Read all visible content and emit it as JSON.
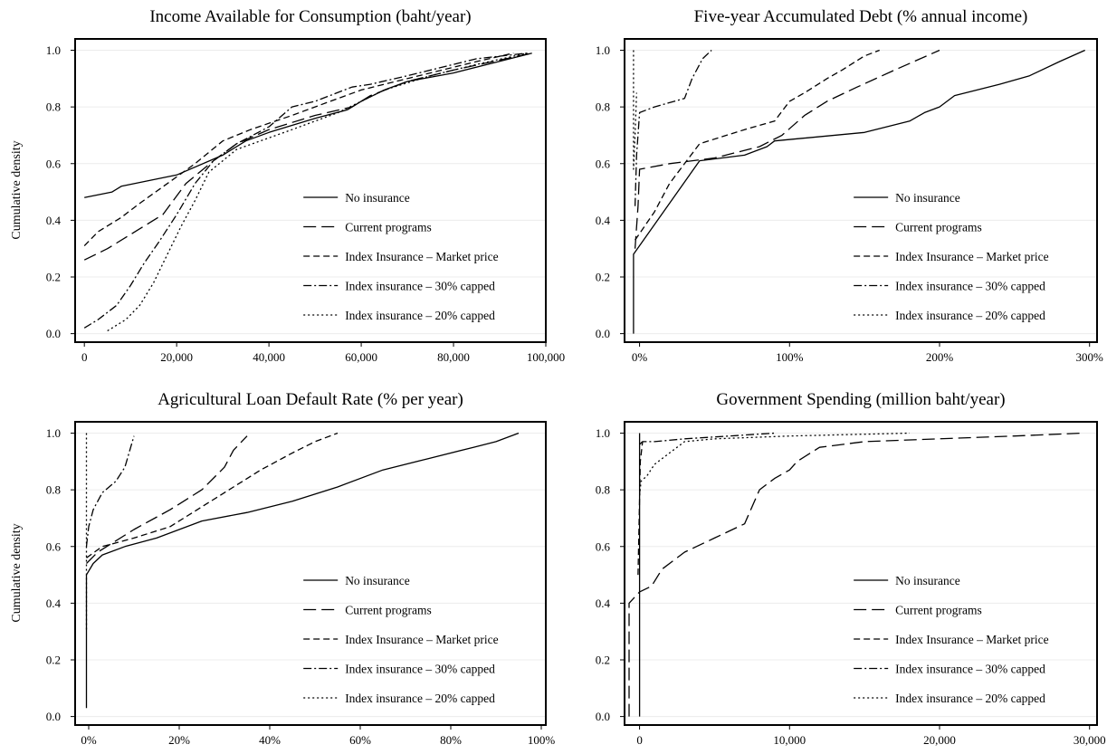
{
  "series_styles": {
    "No insurance": "",
    "Current programs": "14,6",
    "Index Insurance – Market price": "7,4",
    "Index insurance – 30% capped": "9,3,2,3",
    "Index insurance – 20% capped": "2,3"
  },
  "chart_data": [
    {
      "type": "line",
      "title": "Income Available for Consumption (baht/year)",
      "ylabel": "Cumulative density",
      "xlabel": "",
      "xlim": [
        -2000,
        100000
      ],
      "ylim": [
        -0.03,
        1.04
      ],
      "xticks": [
        0,
        20000,
        40000,
        60000,
        80000,
        100000
      ],
      "xtick_labels": [
        "0",
        "20,000",
        "40,000",
        "60,000",
        "80,000",
        "100,000"
      ],
      "yticks": [
        0.0,
        0.2,
        0.4,
        0.6,
        0.8,
        1.0
      ],
      "ytick_labels": [
        "0.0",
        "0.2",
        "0.4",
        "0.6",
        "0.8",
        "1.0"
      ],
      "grid": true,
      "legend": "lower-right",
      "series": [
        {
          "name": "No insurance",
          "x": [
            0,
            6000,
            8000,
            20000,
            30000,
            35000,
            40000,
            50000,
            57000,
            60000,
            65000,
            70000,
            80000,
            97000
          ],
          "y": [
            0.48,
            0.5,
            0.52,
            0.56,
            0.63,
            0.68,
            0.71,
            0.76,
            0.79,
            0.82,
            0.86,
            0.89,
            0.92,
            0.99
          ]
        },
        {
          "name": "Current programs",
          "x": [
            0,
            5000,
            10000,
            17000,
            22000,
            28000,
            33000,
            40000,
            50000,
            58000,
            62000,
            70000,
            80000,
            97000
          ],
          "y": [
            0.26,
            0.3,
            0.35,
            0.42,
            0.53,
            0.61,
            0.67,
            0.72,
            0.77,
            0.8,
            0.84,
            0.89,
            0.93,
            0.99
          ]
        },
        {
          "name": "Index Insurance – Market price",
          "x": [
            0,
            3000,
            8000,
            12000,
            18000,
            24000,
            30000,
            36000,
            45000,
            55000,
            60000,
            65000,
            75000,
            85000,
            93000
          ],
          "y": [
            0.31,
            0.36,
            0.41,
            0.46,
            0.53,
            0.6,
            0.68,
            0.72,
            0.77,
            0.83,
            0.86,
            0.88,
            0.92,
            0.96,
            0.99
          ]
        },
        {
          "name": "Index insurance – 30% capped",
          "x": [
            0,
            3000,
            7000,
            10000,
            13000,
            16000,
            20000,
            24000,
            28000,
            33000,
            40000,
            45000,
            50000,
            58000,
            62000,
            70000,
            85000,
            96000
          ],
          "y": [
            0.02,
            0.05,
            0.1,
            0.17,
            0.25,
            0.32,
            0.42,
            0.53,
            0.61,
            0.67,
            0.73,
            0.8,
            0.82,
            0.87,
            0.88,
            0.91,
            0.97,
            0.99
          ]
        },
        {
          "name": "Index insurance – 20% capped",
          "x": [
            5000,
            9000,
            12000,
            15000,
            18000,
            21000,
            24000,
            27000,
            33000,
            45000,
            55000,
            65000,
            75000,
            85000,
            96000
          ],
          "y": [
            0.01,
            0.05,
            0.1,
            0.18,
            0.28,
            0.38,
            0.47,
            0.57,
            0.65,
            0.72,
            0.78,
            0.86,
            0.91,
            0.95,
            0.99
          ]
        }
      ]
    },
    {
      "type": "line",
      "title": "Five-year Accumulated Debt (% annual income)",
      "ylabel": "",
      "xlabel": "",
      "xlim": [
        -10,
        305
      ],
      "ylim": [
        -0.03,
        1.04
      ],
      "xticks": [
        0,
        100,
        200,
        300
      ],
      "xtick_labels": [
        "0%",
        "100%",
        "200%",
        "300%"
      ],
      "yticks": [
        0.0,
        0.2,
        0.4,
        0.6,
        0.8,
        1.0
      ],
      "ytick_labels": [
        "0.0",
        "0.2",
        "0.4",
        "0.6",
        "0.8",
        "1.0"
      ],
      "grid": true,
      "legend": "lower-right",
      "series": [
        {
          "name": "No insurance",
          "x": [
            -4,
            -4,
            -4,
            40,
            70,
            85,
            90,
            150,
            180,
            190,
            200,
            210,
            240,
            260,
            280,
            297
          ],
          "y": [
            0.0,
            0.24,
            0.28,
            0.61,
            0.63,
            0.66,
            0.68,
            0.71,
            0.75,
            0.78,
            0.8,
            0.84,
            0.88,
            0.91,
            0.96,
            1.0
          ]
        },
        {
          "name": "Current programs",
          "x": [
            -3,
            -1,
            0,
            20,
            50,
            80,
            95,
            110,
            125,
            145,
            170,
            200
          ],
          "y": [
            0.3,
            0.45,
            0.58,
            0.6,
            0.62,
            0.66,
            0.7,
            0.77,
            0.82,
            0.87,
            0.93,
            1.0
          ]
        },
        {
          "name": "Index Insurance – Market price",
          "x": [
            -3,
            10,
            20,
            40,
            70,
            90,
            100,
            110,
            125,
            135,
            150,
            160
          ],
          "y": [
            0.33,
            0.43,
            0.53,
            0.67,
            0.72,
            0.75,
            0.82,
            0.85,
            0.9,
            0.93,
            0.98,
            1.0
          ]
        },
        {
          "name": "Index insurance – 30% capped",
          "x": [
            -3,
            -2,
            0,
            10,
            30,
            35,
            42,
            48
          ],
          "y": [
            0.45,
            0.63,
            0.78,
            0.8,
            0.83,
            0.9,
            0.97,
            1.0
          ]
        },
        {
          "name": "Index insurance – 20% capped",
          "x": [
            -4,
            -4,
            -3,
            -2
          ],
          "y": [
            1.0,
            0.58,
            0.7,
            0.85
          ]
        }
      ]
    },
    {
      "type": "line",
      "title": "Agricultural Loan Default Rate (% per year)",
      "ylabel": "Cumulative density",
      "xlabel": "",
      "xlim": [
        -3,
        101
      ],
      "ylim": [
        -0.03,
        1.04
      ],
      "xticks": [
        0,
        20,
        40,
        60,
        80,
        100
      ],
      "xtick_labels": [
        "0%",
        "20%",
        "40%",
        "60%",
        "80%",
        "100%"
      ],
      "yticks": [
        0.0,
        0.2,
        0.4,
        0.6,
        0.8,
        1.0
      ],
      "ytick_labels": [
        "0.0",
        "0.2",
        "0.4",
        "0.6",
        "0.8",
        "1.0"
      ],
      "grid": true,
      "legend": "lower-right",
      "series": [
        {
          "name": "No insurance",
          "x": [
            -0.5,
            -0.5,
            1,
            3,
            8,
            15,
            20,
            25,
            35,
            45,
            55,
            65,
            75,
            85,
            90,
            95
          ],
          "y": [
            0.03,
            0.5,
            0.54,
            0.57,
            0.6,
            0.63,
            0.66,
            0.69,
            0.72,
            0.76,
            0.81,
            0.87,
            0.91,
            0.95,
            0.97,
            1.0
          ]
        },
        {
          "name": "Current programs",
          "x": [
            -0.5,
            2,
            5,
            10,
            18,
            25,
            30,
            32,
            35
          ],
          "y": [
            0.54,
            0.58,
            0.61,
            0.66,
            0.73,
            0.8,
            0.88,
            0.94,
            0.99
          ]
        },
        {
          "name": "Index Insurance – Market price",
          "x": [
            -0.5,
            3,
            10,
            18,
            25,
            32,
            38,
            45,
            50,
            55
          ],
          "y": [
            0.56,
            0.6,
            0.63,
            0.67,
            0.74,
            0.81,
            0.87,
            0.93,
            0.97,
            1.0
          ]
        },
        {
          "name": "Index insurance – 30% capped",
          "x": [
            -0.5,
            0,
            1,
            2,
            3,
            6,
            8,
            10
          ],
          "y": [
            0.6,
            0.67,
            0.73,
            0.76,
            0.79,
            0.83,
            0.88,
            0.99
          ]
        },
        {
          "name": "Index insurance – 20% capped",
          "x": [
            -0.5,
            -0.5
          ],
          "y": [
            1.0,
            0.3
          ]
        }
      ]
    },
    {
      "type": "line",
      "title": "Government Spending (million baht/year)",
      "ylabel": "",
      "xlabel": "",
      "xlim": [
        -1000,
        30500
      ],
      "ylim": [
        -0.03,
        1.04
      ],
      "xticks": [
        0,
        10000,
        20000,
        30000
      ],
      "xtick_labels": [
        "0",
        "10,000",
        "20,000",
        "30,000"
      ],
      "yticks": [
        0.0,
        0.2,
        0.4,
        0.6,
        0.8,
        1.0
      ],
      "ytick_labels": [
        "0.0",
        "0.2",
        "0.4",
        "0.6",
        "0.8",
        "1.0"
      ],
      "grid": true,
      "legend": "lower-right",
      "series": [
        {
          "name": "No insurance",
          "x": [
            0,
            0
          ],
          "y": [
            0.0,
            1.0
          ]
        },
        {
          "name": "Current programs",
          "x": [
            -700,
            -700,
            0,
            800,
            1500,
            3000,
            5000,
            7000,
            8000,
            9000,
            10000,
            10500,
            12000,
            15000,
            20000,
            25000,
            29500
          ],
          "y": [
            0.0,
            0.4,
            0.44,
            0.46,
            0.52,
            0.58,
            0.63,
            0.68,
            0.8,
            0.84,
            0.87,
            0.9,
            0.95,
            0.97,
            0.98,
            0.99,
            1.0
          ]
        },
        {
          "name": "Index Insurance – Market price",
          "x": [
            -100,
            50,
            200
          ],
          "y": [
            0.5,
            0.9,
            0.97
          ]
        },
        {
          "name": "Index insurance – 30% capped",
          "x": [
            0,
            200,
            1000,
            3000,
            6000,
            9000
          ],
          "y": [
            0.96,
            0.97,
            0.97,
            0.98,
            0.99,
            1.0
          ]
        },
        {
          "name": "Index insurance – 20% capped",
          "x": [
            0,
            100,
            500,
            1000,
            2000,
            3000,
            5000,
            10000,
            18000
          ],
          "y": [
            0.78,
            0.83,
            0.85,
            0.89,
            0.93,
            0.97,
            0.98,
            0.99,
            1.0
          ]
        }
      ]
    }
  ]
}
